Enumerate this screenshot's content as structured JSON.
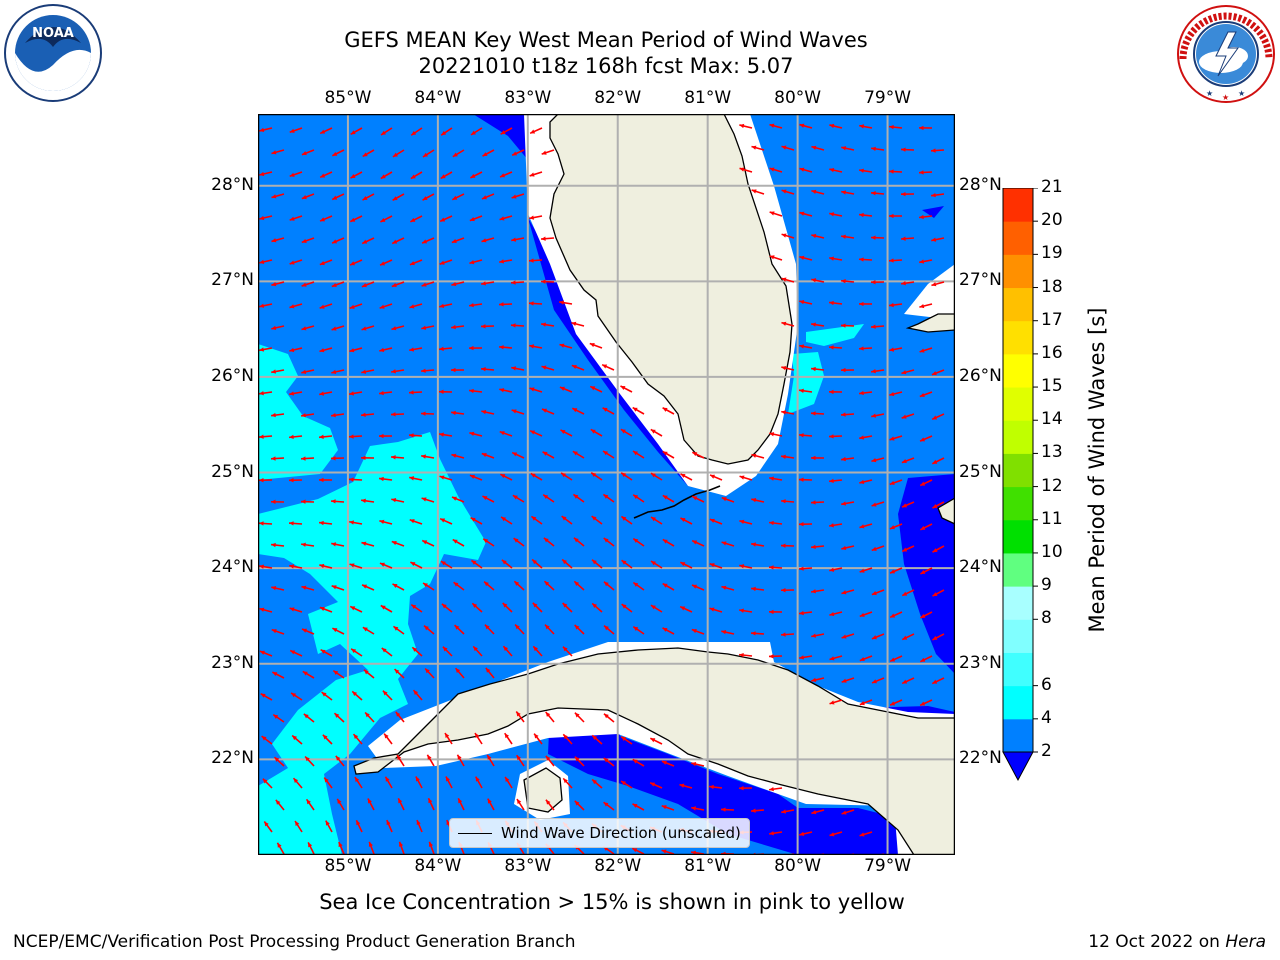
{
  "title": {
    "line1": "GEFS MEAN Key West Mean Period of Wind Waves",
    "line2": "20221010 t18z 168h fcst   Max: 5.07"
  },
  "logos": {
    "left": {
      "text": "NOAA",
      "ring_text": "NATIONAL OCEANIC AND ATMOSPHERIC ADMINISTRATION · U.S. DEPARTMENT OF COMMERCE"
    },
    "right": {
      "ring_text": "NATIONAL WEATHER SERVICE"
    }
  },
  "map": {
    "lon_labels": [
      "85°W",
      "84°W",
      "83°W",
      "82°W",
      "81°W",
      "80°W",
      "79°W"
    ],
    "lon_values": [
      -85,
      -84,
      -83,
      -82,
      -81,
      -80,
      -79
    ],
    "lat_labels": [
      "28°N",
      "27°N",
      "26°N",
      "25°N",
      "24°N",
      "23°N",
      "22°N"
    ],
    "lat_values": [
      28,
      27,
      26,
      25,
      24,
      23,
      22
    ],
    "extent": {
      "lon_min": -86.0,
      "lon_max": -78.25,
      "lat_min": 21.0,
      "lat_max": 28.75
    },
    "colors": {
      "ocean_2_4": "#0080ff",
      "ocean_lt2": "#0000ff",
      "ocean_4_6": "#00ffff",
      "land": "#efefdf",
      "grid": "#b0b0b0",
      "arrow": "#ff0000"
    },
    "legend": "Wind Wave Direction (unscaled)"
  },
  "colorbar": {
    "title": "Mean Period of Wind Waves [s]",
    "tick_labels": [
      "21",
      "20",
      "19",
      "18",
      "17",
      "16",
      "15",
      "14",
      "13",
      "12",
      "11",
      "10",
      "9",
      "8",
      "6",
      "4",
      "2"
    ],
    "levels": [
      2,
      4,
      6,
      7,
      8,
      9,
      10,
      11,
      12,
      13,
      14,
      15,
      16,
      17,
      18,
      19,
      20,
      21
    ],
    "colors": [
      "#0080ff",
      "#00ffff",
      "#40ffff",
      "#80ffff",
      "#a8ffff",
      "#60ff80",
      "#00e000",
      "#40e000",
      "#80e000",
      "#c0ff00",
      "#e0ff00",
      "#ffff00",
      "#ffe000",
      "#ffc000",
      "#ff9000",
      "#ff6000",
      "#ff3000",
      "#ff0000"
    ],
    "under_color": "#0000ff"
  },
  "note": "Sea Ice Concentration > 15% is shown in pink to yellow",
  "footer": {
    "left": "NCEP/EMC/Verification Post Processing Product Generation Branch",
    "date": "12 Oct 2022 on",
    "machine": "Hera"
  }
}
